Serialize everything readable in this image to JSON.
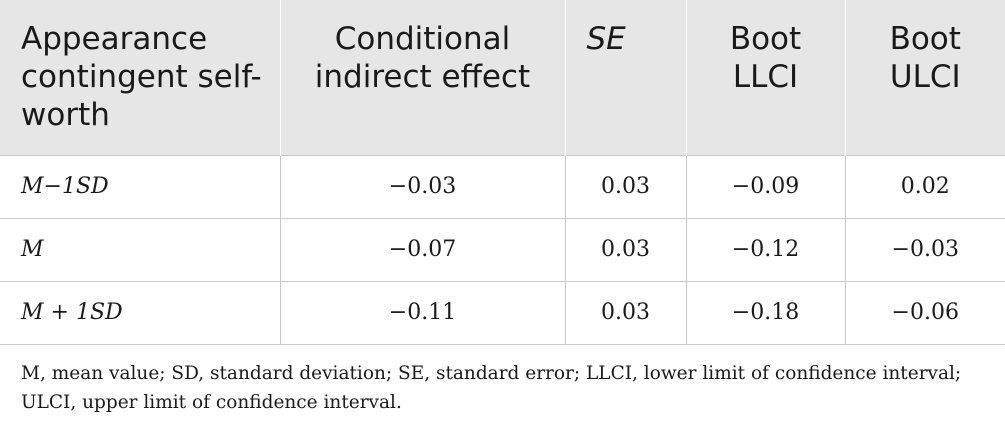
{
  "table": {
    "headers": [
      {
        "text": "Appearance contingent self-worth"
      },
      {
        "text": "Conditional indirect effect"
      },
      {
        "text": "SE"
      },
      {
        "text": "Boot LLCI"
      },
      {
        "text": "Boot ULCI"
      }
    ],
    "rows": [
      {
        "label": "M−1SD",
        "effect": "−0.03",
        "se": "0.03",
        "llci": "−0.09",
        "ulci": "0.02"
      },
      {
        "label": "M",
        "effect": "−0.07",
        "se": "0.03",
        "llci": "−0.12",
        "ulci": "−0.03"
      },
      {
        "label": "M + 1SD",
        "effect": "−0.11",
        "se": "0.03",
        "llci": "−0.18",
        "ulci": "−0.06"
      }
    ]
  },
  "footnote": "M, mean value; SD, standard deviation; SE, standard error; LLCI, lower limit of confidence interval; ULCI, upper limit of confidence interval."
}
